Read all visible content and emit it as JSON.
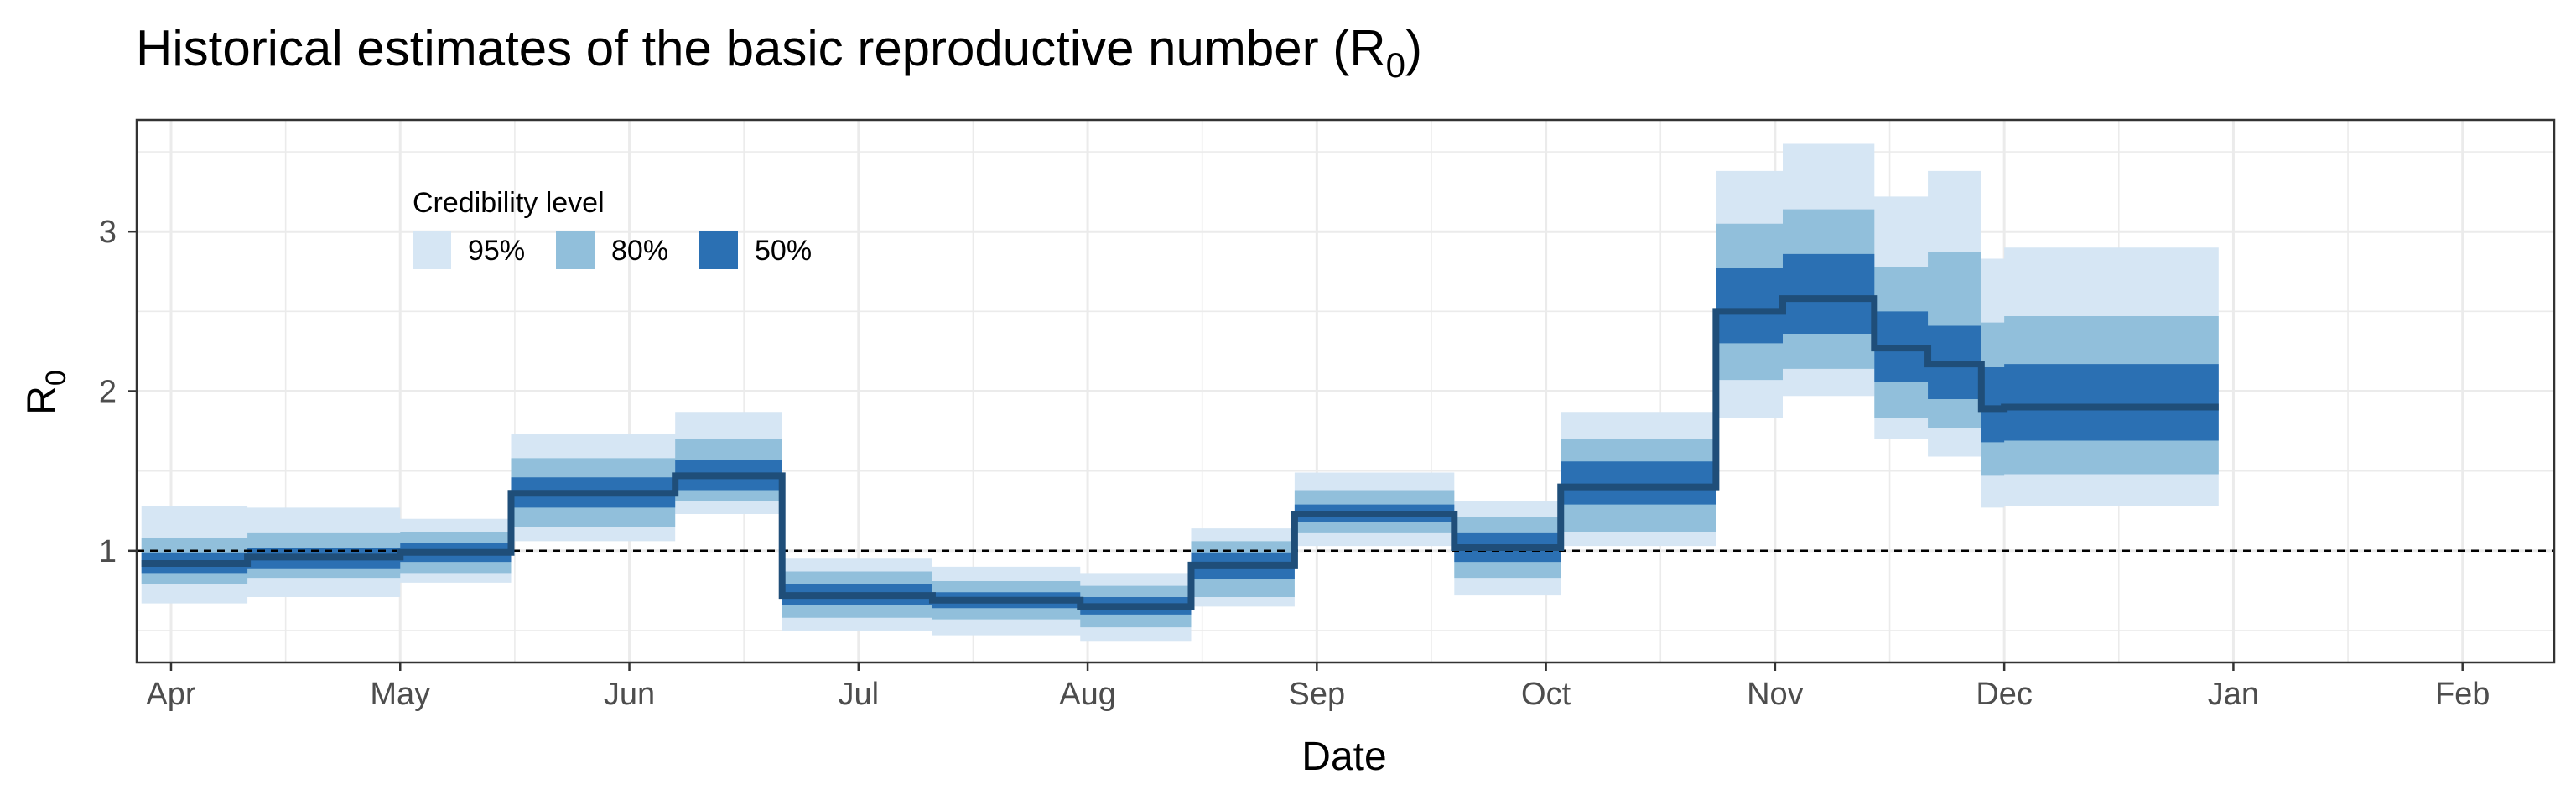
{
  "chart_data": {
    "type": "area",
    "title_main": "Historical estimates of the basic reproductive number (R",
    "title_sub": "0",
    "title_end": ")",
    "xlabel": "Date",
    "ylabel_main": "R",
    "ylabel_sub": "0",
    "x_ticks": [
      "Apr",
      "May",
      "Jun",
      "Jul",
      "Aug",
      "Sep",
      "Oct",
      "Nov",
      "Dec",
      "Jan",
      "Feb"
    ],
    "y_ticks": [
      "1",
      "2",
      "3"
    ],
    "y_tick_values": [
      1,
      2,
      3
    ],
    "x_range_months": [
      -0.15,
      10.4
    ],
    "ylim": [
      0.3,
      3.7
    ],
    "reference_line_y": 1,
    "grid": true,
    "legend_position": "top-left inside",
    "legend": {
      "title": "Credibility level",
      "items": [
        {
          "label": "95%",
          "color": "#d6e6f4"
        },
        {
          "label": "80%",
          "color": "#91bfdb"
        },
        {
          "label": "50%",
          "color": "#2b70b3"
        }
      ]
    },
    "median_color": "#1f4e79",
    "series": [
      {
        "start": "Mar 28",
        "end": "Apr 11",
        "median": 0.92,
        "ci50": [
          0.86,
          0.99
        ],
        "ci80": [
          0.79,
          1.08
        ],
        "ci95": [
          0.67,
          1.28
        ]
      },
      {
        "start": "Apr 11",
        "end": "May 1",
        "median": 0.96,
        "ci50": [
          0.89,
          1.02
        ],
        "ci80": [
          0.83,
          1.11
        ],
        "ci95": [
          0.71,
          1.27
        ]
      },
      {
        "start": "May 1",
        "end": "May 16",
        "median": 0.99,
        "ci50": [
          0.93,
          1.05
        ],
        "ci80": [
          0.86,
          1.12
        ],
        "ci95": [
          0.8,
          1.2
        ]
      },
      {
        "start": "May 16",
        "end": "Jun 7",
        "median": 1.36,
        "ci50": [
          1.27,
          1.46
        ],
        "ci80": [
          1.15,
          1.58
        ],
        "ci95": [
          1.06,
          1.73
        ]
      },
      {
        "start": "Jun 7",
        "end": "Jun 21",
        "median": 1.47,
        "ci50": [
          1.38,
          1.57
        ],
        "ci80": [
          1.31,
          1.7
        ],
        "ci95": [
          1.23,
          1.87
        ]
      },
      {
        "start": "Jun 21",
        "end": "Jul 11",
        "median": 0.72,
        "ci50": [
          0.66,
          0.79
        ],
        "ci80": [
          0.58,
          0.87
        ],
        "ci95": [
          0.5,
          0.95
        ]
      },
      {
        "start": "Jul 11",
        "end": "Jul 31",
        "median": 0.69,
        "ci50": [
          0.64,
          0.74
        ],
        "ci80": [
          0.57,
          0.81
        ],
        "ci95": [
          0.47,
          0.9
        ]
      },
      {
        "start": "Jul 31",
        "end": "Aug 15",
        "median": 0.65,
        "ci50": [
          0.6,
          0.71
        ],
        "ci80": [
          0.52,
          0.78
        ],
        "ci95": [
          0.43,
          0.86
        ]
      },
      {
        "start": "Aug 15",
        "end": "Aug 29",
        "median": 0.91,
        "ci50": [
          0.82,
          0.99
        ],
        "ci80": [
          0.71,
          1.06
        ],
        "ci95": [
          0.65,
          1.14
        ]
      },
      {
        "start": "Aug 29",
        "end": "Sep 19",
        "median": 1.23,
        "ci50": [
          1.18,
          1.29
        ],
        "ci80": [
          1.11,
          1.38
        ],
        "ci95": [
          1.03,
          1.49
        ]
      },
      {
        "start": "Sep 19",
        "end": "Oct 3",
        "median": 1.02,
        "ci50": [
          0.93,
          1.11
        ],
        "ci80": [
          0.83,
          1.21
        ],
        "ci95": [
          0.72,
          1.31
        ]
      },
      {
        "start": "Oct 3",
        "end": "Oct 24",
        "median": 1.4,
        "ci50": [
          1.29,
          1.56
        ],
        "ci80": [
          1.12,
          1.7
        ],
        "ci95": [
          1.03,
          1.87
        ]
      },
      {
        "start": "Oct 24",
        "end": "Nov 2",
        "median": 2.5,
        "ci50": [
          2.3,
          2.77
        ],
        "ci80": [
          2.07,
          3.05
        ],
        "ci95": [
          1.83,
          3.38
        ]
      },
      {
        "start": "Nov 2",
        "end": "Nov 14",
        "median": 2.58,
        "ci50": [
          2.36,
          2.86
        ],
        "ci80": [
          2.14,
          3.14
        ],
        "ci95": [
          1.97,
          3.55
        ]
      },
      {
        "start": "Nov 14",
        "end": "Nov 21",
        "median": 2.27,
        "ci50": [
          2.06,
          2.5
        ],
        "ci80": [
          1.83,
          2.78
        ],
        "ci95": [
          1.7,
          3.22
        ]
      },
      {
        "start": "Nov 21",
        "end": "Nov 28",
        "median": 2.17,
        "ci50": [
          1.95,
          2.41
        ],
        "ci80": [
          1.77,
          2.87
        ],
        "ci95": [
          1.59,
          3.38
        ]
      },
      {
        "start": "Nov 28",
        "end": "Dec 1",
        "median": 1.89,
        "ci50": [
          1.68,
          2.15
        ],
        "ci80": [
          1.47,
          2.43
        ],
        "ci95": [
          1.27,
          2.83
        ]
      },
      {
        "start": "Dec 1",
        "end": "Dec 30",
        "median": 1.9,
        "ci50": [
          1.69,
          2.17
        ],
        "ci80": [
          1.48,
          2.47
        ],
        "ci95": [
          1.28,
          2.9
        ]
      }
    ]
  }
}
